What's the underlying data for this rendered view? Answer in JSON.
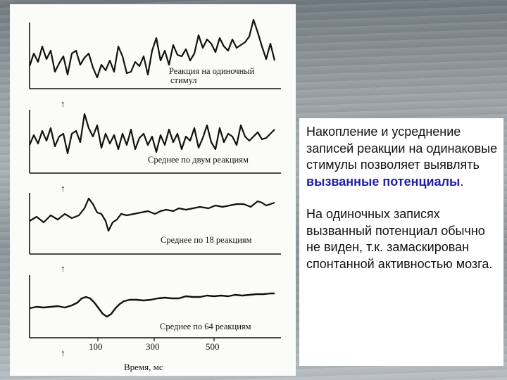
{
  "figure": {
    "traces": [
      {
        "label_line1": "Реакция на одиночный",
        "label_line2": "стимул"
      },
      {
        "label_line1": "Среднее по двум реакциям",
        "label_line2": ""
      },
      {
        "label_line1": "Среднее по 18 реакциям",
        "label_line2": ""
      },
      {
        "label_line1": "Среднее по 64 реакциям",
        "label_line2": ""
      }
    ],
    "x_ticks": [
      "100",
      "300",
      "500"
    ],
    "x_label": "Время, мс",
    "stimulus_marker": "↑"
  },
  "text": {
    "p1_before": "Накопление и усреднение записей реакции на одинаковые стимулы позволяет выявлять ",
    "p1_highlight": "вызванные потенциалы",
    "p1_after": ".",
    "p2": "На одиночных записях вызванный потенциал обычно не виден, т.к. замаскирован спонтанной активностью мозга.",
    "highlight_color": "#1f1fa8"
  }
}
